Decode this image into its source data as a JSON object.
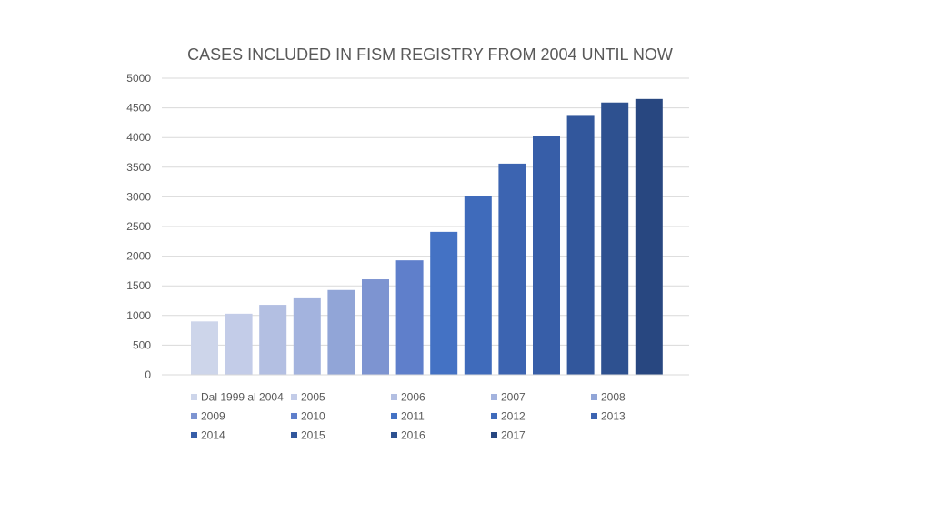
{
  "chart_data": {
    "type": "bar",
    "title": "CASES INCLUDED IN FISM REGISTRY FROM 2004 UNTIL NOW",
    "xlabel": "",
    "ylabel": "",
    "ylim": [
      0,
      5000
    ],
    "y_ticks": [
      0,
      500,
      1000,
      1500,
      2000,
      2500,
      3000,
      3500,
      4000,
      4500,
      5000
    ],
    "grid": true,
    "legend_position": "bottom",
    "series": [
      {
        "name": "Dal 1999 al 2004",
        "value": 900,
        "color": "#cdd5ea"
      },
      {
        "name": "2005",
        "value": 1030,
        "color": "#c3cce8"
      },
      {
        "name": "2006",
        "value": 1180,
        "color": "#b3bfe2"
      },
      {
        "name": "2007",
        "value": 1290,
        "color": "#a3b3de"
      },
      {
        "name": "2008",
        "value": 1430,
        "color": "#91a5d7"
      },
      {
        "name": "2009",
        "value": 1610,
        "color": "#7d94d1"
      },
      {
        "name": "2010",
        "value": 1930,
        "color": "#5f7fcb"
      },
      {
        "name": "2011",
        "value": 2410,
        "color": "#4472c4"
      },
      {
        "name": "2012",
        "value": 3010,
        "color": "#3f6bbb"
      },
      {
        "name": "2013",
        "value": 3560,
        "color": "#3c64b1"
      },
      {
        "name": "2014",
        "value": 4030,
        "color": "#375ea8"
      },
      {
        "name": "2015",
        "value": 4380,
        "color": "#32579c"
      },
      {
        "name": "2016",
        "value": 4590,
        "color": "#2e5190"
      },
      {
        "name": "2017",
        "value": 4650,
        "color": "#284780"
      }
    ]
  }
}
